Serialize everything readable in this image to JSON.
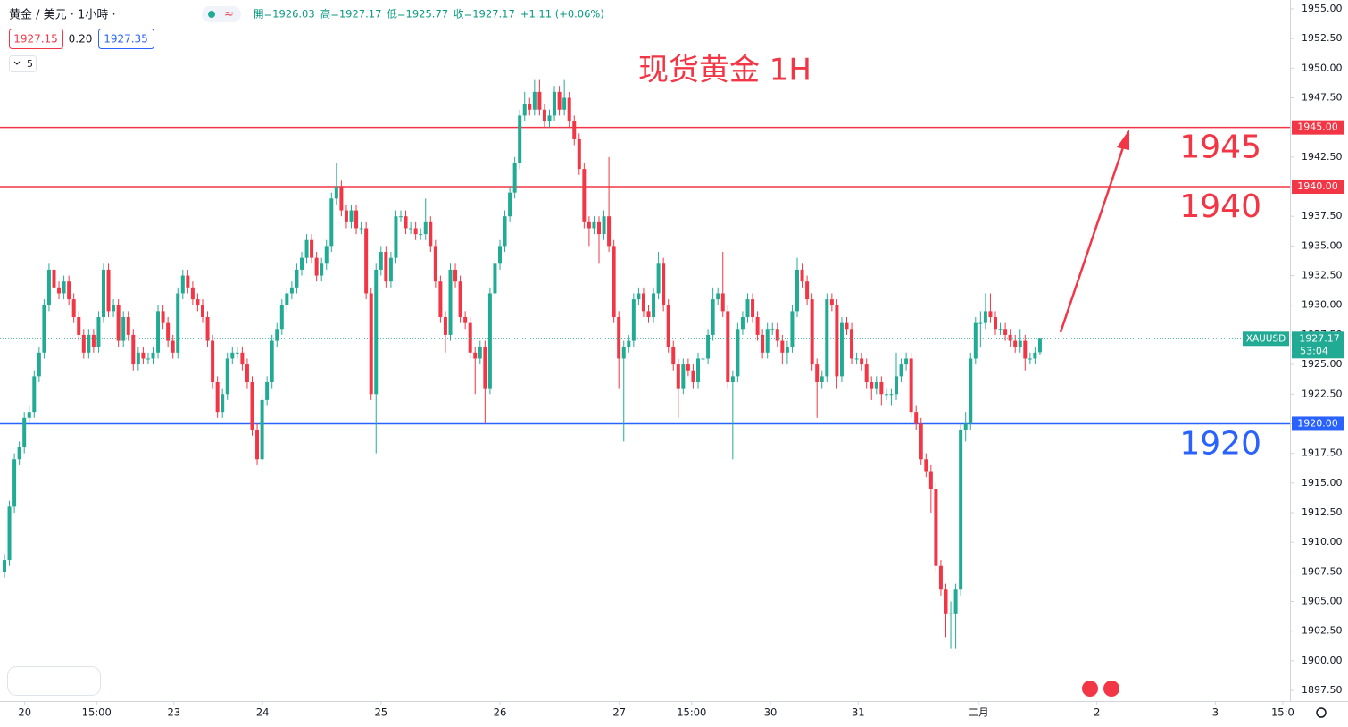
{
  "header": {
    "symbol": "黄金 / 美元 · 1小時 ·",
    "ohlc": [
      "開=1926.03",
      "高=1927.17",
      "低=1925.77",
      "收=1927.17",
      "+1.11 (+0.06%)"
    ],
    "bid": "1927.15",
    "spread": "0.20",
    "ask": "1927.35",
    "indicator": "5"
  },
  "chart_data": {
    "type": "candlestick",
    "title": "现货黄金 1H",
    "up_color": "#22ab94",
    "down_color": "#f23645",
    "grid": false,
    "ylim": [
      1896.6,
      1955.75
    ],
    "xlim": [
      -0.9,
      259.46
    ],
    "yticks": [
      {
        "value": 1897.5,
        "label": "1897.50"
      },
      {
        "value": 1900,
        "label": "1900.00"
      },
      {
        "value": 1902.5,
        "label": "1902.50"
      },
      {
        "value": 1905,
        "label": "1905.00"
      },
      {
        "value": 1907.5,
        "label": "1907.50"
      },
      {
        "value": 1910,
        "label": "1910.00"
      },
      {
        "value": 1912.5,
        "label": "1912.50"
      },
      {
        "value": 1915,
        "label": "1915.00"
      },
      {
        "value": 1917.5,
        "label": "1917.50"
      },
      {
        "value": 1920,
        "label": "1920.00"
      },
      {
        "value": 1922.5,
        "label": "1922.50"
      },
      {
        "value": 1925,
        "label": "1925.00"
      },
      {
        "value": 1927.5,
        "label": "1927.50"
      },
      {
        "value": 1930,
        "label": "1930.00"
      },
      {
        "value": 1932.5,
        "label": "1932.50"
      },
      {
        "value": 1935,
        "label": "1935.00"
      },
      {
        "value": 1937.5,
        "label": "1937.50"
      },
      {
        "value": 1940,
        "label": "1940.00"
      },
      {
        "value": 1942.5,
        "label": "1942.50"
      },
      {
        "value": 1945,
        "label": "1945.00"
      },
      {
        "value": 1947.5,
        "label": "1947.50"
      },
      {
        "value": 1950,
        "label": "1950.00"
      },
      {
        "value": 1952.5,
        "label": "1952.50"
      },
      {
        "value": 1955,
        "label": "1955.00"
      }
    ],
    "xticks": [
      {
        "value": 4.1,
        "label": "20"
      },
      {
        "value": 18.6,
        "label": "15:00"
      },
      {
        "value": 34.2,
        "label": "23"
      },
      {
        "value": 52.1,
        "label": "24"
      },
      {
        "value": 76,
        "label": "25"
      },
      {
        "value": 100,
        "label": "26"
      },
      {
        "value": 124.1,
        "label": "27"
      },
      {
        "value": 138.7,
        "label": "15:00"
      },
      {
        "value": 154.6,
        "label": "30"
      },
      {
        "value": 172.3,
        "label": "31"
      },
      {
        "value": 196.6,
        "label": "二月"
      },
      {
        "value": 220.5,
        "label": "2"
      },
      {
        "value": 244.4,
        "label": "3"
      },
      {
        "value": 258,
        "label": "15:0"
      }
    ],
    "levels": [
      {
        "value": 1945,
        "label": "1945.00",
        "color": "#f23645"
      },
      {
        "value": 1940,
        "label": "1940.00",
        "color": "#f23645"
      },
      {
        "value": 1920,
        "label": "1920.00",
        "color": "#2962ff"
      }
    ],
    "last": {
      "symbol": "XAUUSD",
      "price": 1927.17,
      "countdown": "53:04"
    },
    "candles": [
      [
        1907.5,
        1909,
        1907,
        1908.5
      ],
      [
        1908.5,
        1913.5,
        1908,
        1913
      ],
      [
        1913,
        1917.5,
        1912.5,
        1917
      ],
      [
        1917,
        1918.5,
        1916.5,
        1918
      ],
      [
        1918,
        1921,
        1917.5,
        1920.5
      ],
      [
        1920.5,
        1921.5,
        1920,
        1921
      ],
      [
        1921,
        1924.5,
        1920.5,
        1924
      ],
      [
        1924,
        1926.5,
        1923.5,
        1926
      ],
      [
        1926,
        1930.5,
        1925.5,
        1930
      ],
      [
        1930,
        1933.5,
        1929.5,
        1933
      ],
      [
        1933,
        1933.5,
        1931,
        1931.5
      ],
      [
        1931.5,
        1932,
        1930.5,
        1931
      ],
      [
        1931,
        1932.5,
        1930.5,
        1932
      ],
      [
        1932,
        1932.5,
        1930,
        1930.5
      ],
      [
        1930.5,
        1931,
        1928.5,
        1929
      ],
      [
        1929,
        1929.5,
        1927,
        1927.5
      ],
      [
        1927.5,
        1928,
        1925.5,
        1926
      ],
      [
        1926,
        1928,
        1925.5,
        1927.5
      ],
      [
        1927.5,
        1928,
        1926,
        1926.5
      ],
      [
        1926.5,
        1929.5,
        1926,
        1929
      ],
      [
        1929,
        1933.5,
        1928.5,
        1933
      ],
      [
        1933,
        1933.5,
        1929,
        1929.5
      ],
      [
        1929.5,
        1930.5,
        1929,
        1930
      ],
      [
        1930,
        1930.5,
        1926.5,
        1927
      ],
      [
        1927,
        1929.5,
        1926.5,
        1929
      ],
      [
        1929,
        1929.5,
        1927,
        1927.5
      ],
      [
        1927.5,
        1928,
        1924.5,
        1925
      ],
      [
        1925,
        1926.5,
        1924.5,
        1926
      ],
      [
        1926,
        1926.5,
        1925,
        1925.5
      ],
      [
        1925.5,
        1926,
        1925,
        1925.5
      ],
      [
        1925.5,
        1926.5,
        1925,
        1926
      ],
      [
        1926,
        1930,
        1925.5,
        1929.5
      ],
      [
        1929.5,
        1930,
        1928,
        1928.5
      ],
      [
        1928.5,
        1929,
        1926.5,
        1927
      ],
      [
        1927,
        1927.5,
        1925.5,
        1926
      ],
      [
        1926,
        1931.5,
        1925.5,
        1931
      ],
      [
        1931,
        1933,
        1930.5,
        1932.5
      ],
      [
        1932.5,
        1933,
        1931,
        1931.5
      ],
      [
        1931.5,
        1932,
        1930,
        1930.5
      ],
      [
        1930.5,
        1931,
        1929.5,
        1930
      ],
      [
        1930,
        1930.5,
        1928.5,
        1929
      ],
      [
        1929,
        1929.5,
        1926.5,
        1927
      ],
      [
        1927,
        1927.5,
        1923,
        1923.5
      ],
      [
        1923.5,
        1924,
        1920.5,
        1921
      ],
      [
        1921,
        1923,
        1920.5,
        1922.5
      ],
      [
        1922.5,
        1926,
        1922,
        1925.5
      ],
      [
        1925.5,
        1926.5,
        1925,
        1926
      ],
      [
        1926,
        1926.5,
        1925.5,
        1926
      ],
      [
        1926,
        1926.5,
        1924.5,
        1925
      ],
      [
        1925,
        1925.5,
        1923,
        1923.5
      ],
      [
        1923.5,
        1924,
        1919,
        1919.5
      ],
      [
        1919.5,
        1920,
        1916.5,
        1917
      ],
      [
        1917,
        1922.5,
        1916.5,
        1922
      ],
      [
        1922,
        1924,
        1921.5,
        1923.5
      ],
      [
        1923.5,
        1927.5,
        1923,
        1927
      ],
      [
        1927,
        1928.5,
        1926.5,
        1928
      ],
      [
        1928,
        1930.5,
        1927.5,
        1930
      ],
      [
        1930,
        1931.5,
        1929.5,
        1931
      ],
      [
        1931,
        1932,
        1930.5,
        1931.5
      ],
      [
        1931.5,
        1933.5,
        1931,
        1933
      ],
      [
        1933,
        1934.5,
        1932.5,
        1934
      ],
      [
        1934,
        1936,
        1933.5,
        1935.5
      ],
      [
        1935.5,
        1936,
        1933.5,
        1934
      ],
      [
        1934,
        1934.5,
        1932,
        1932.5
      ],
      [
        1932.5,
        1934,
        1932,
        1933.5
      ],
      [
        1933.5,
        1935.5,
        1933,
        1935
      ],
      [
        1935,
        1939.5,
        1934.5,
        1939
      ],
      [
        1939,
        1942,
        1938.5,
        1940
      ],
      [
        1940,
        1940.5,
        1937.5,
        1938
      ],
      [
        1938,
        1938.5,
        1936.5,
        1937
      ],
      [
        1937,
        1938.5,
        1936.5,
        1938
      ],
      [
        1938,
        1938.5,
        1936,
        1936.5
      ],
      [
        1936.5,
        1937,
        1936,
        1936.5
      ],
      [
        1936.5,
        1937,
        1930.5,
        1931
      ],
      [
        1931,
        1931.5,
        1922,
        1922.5
      ],
      [
        1922.5,
        1933.5,
        1917.5,
        1933
      ],
      [
        1933,
        1935,
        1932.5,
        1934.5
      ],
      [
        1934.5,
        1935,
        1931.5,
        1932
      ],
      [
        1932,
        1934.5,
        1931.5,
        1934
      ],
      [
        1934,
        1938,
        1933.5,
        1937.5
      ],
      [
        1937.5,
        1938,
        1937,
        1937.5
      ],
      [
        1937.5,
        1938,
        1936,
        1936.5
      ],
      [
        1936.5,
        1937,
        1936,
        1936.5
      ],
      [
        1936.5,
        1937,
        1935.5,
        1936
      ],
      [
        1936,
        1936.5,
        1935.5,
        1936
      ],
      [
        1936,
        1939,
        1935.5,
        1937
      ],
      [
        1937,
        1937.5,
        1934.5,
        1935
      ],
      [
        1935,
        1935.5,
        1931.5,
        1932
      ],
      [
        1932,
        1932.5,
        1928.5,
        1929
      ],
      [
        1929,
        1929.5,
        1926,
        1927.5
      ],
      [
        1927.5,
        1933.5,
        1927,
        1933
      ],
      [
        1933,
        1933.5,
        1931.5,
        1932
      ],
      [
        1932,
        1932.5,
        1928.5,
        1929
      ],
      [
        1929,
        1929.5,
        1928,
        1928.5
      ],
      [
        1928.5,
        1929,
        1925.5,
        1926
      ],
      [
        1926,
        1926.5,
        1922.5,
        1925.5
      ],
      [
        1925.5,
        1927,
        1925,
        1926.5
      ],
      [
        1926.5,
        1927,
        1920,
        1923
      ],
      [
        1923,
        1931.5,
        1922.5,
        1931
      ],
      [
        1931,
        1934,
        1930.5,
        1933.5
      ],
      [
        1933.5,
        1935.5,
        1933,
        1935
      ],
      [
        1935,
        1938,
        1934.5,
        1937.5
      ],
      [
        1937.5,
        1940,
        1937,
        1939.5
      ],
      [
        1939.5,
        1942.5,
        1939,
        1942
      ],
      [
        1942,
        1946.5,
        1941.5,
        1946
      ],
      [
        1946,
        1948,
        1945.5,
        1947
      ],
      [
        1947,
        1947.5,
        1946,
        1946.5
      ],
      [
        1946.5,
        1949,
        1946,
        1948
      ],
      [
        1948,
        1949,
        1946,
        1946.5
      ],
      [
        1946.5,
        1947,
        1945,
        1945.5
      ],
      [
        1945.5,
        1946.5,
        1945,
        1946
      ],
      [
        1946,
        1948.5,
        1945.5,
        1948
      ],
      [
        1948,
        1948.5,
        1946,
        1946.5
      ],
      [
        1946.5,
        1949,
        1946,
        1947.5
      ],
      [
        1947.5,
        1948,
        1945,
        1945.5
      ],
      [
        1945.5,
        1946,
        1943.5,
        1944
      ],
      [
        1944,
        1944.5,
        1941,
        1941.5
      ],
      [
        1941.5,
        1942,
        1936.5,
        1937
      ],
      [
        1937,
        1937.5,
        1935,
        1936.5
      ],
      [
        1936.5,
        1937.5,
        1936,
        1937
      ],
      [
        1937,
        1937.5,
        1933.5,
        1936
      ],
      [
        1936,
        1938,
        1935.5,
        1937.5
      ],
      [
        1937.5,
        1942.5,
        1934.5,
        1935
      ],
      [
        1935,
        1935.5,
        1928.5,
        1929
      ],
      [
        1929,
        1929.5,
        1923,
        1925.5
      ],
      [
        1925.5,
        1927,
        1918.5,
        1926.5
      ],
      [
        1926.5,
        1927.5,
        1926,
        1927
      ],
      [
        1927,
        1931,
        1926.5,
        1930.5
      ],
      [
        1930.5,
        1931.5,
        1930,
        1931
      ],
      [
        1931,
        1931.5,
        1929,
        1929.5
      ],
      [
        1929.5,
        1930,
        1928.5,
        1929
      ],
      [
        1929,
        1931.5,
        1928.5,
        1931
      ],
      [
        1931,
        1934.5,
        1930.5,
        1933.5
      ],
      [
        1933.5,
        1934,
        1929.5,
        1930
      ],
      [
        1930,
        1930.5,
        1926,
        1926.5
      ],
      [
        1926.5,
        1927,
        1924.5,
        1925
      ],
      [
        1925,
        1925.5,
        1920.5,
        1923
      ],
      [
        1923,
        1925.5,
        1922.5,
        1925
      ],
      [
        1925,
        1925.5,
        1924,
        1924.5
      ],
      [
        1924.5,
        1925,
        1923,
        1923.5
      ],
      [
        1923.5,
        1926,
        1923,
        1925.5
      ],
      [
        1925.5,
        1926,
        1925,
        1925.5
      ],
      [
        1925.5,
        1928,
        1925,
        1927.5
      ],
      [
        1927.5,
        1931.5,
        1927,
        1930.5
      ],
      [
        1930.5,
        1931.5,
        1930,
        1931
      ],
      [
        1931,
        1934.5,
        1929,
        1929.5
      ],
      [
        1929.5,
        1930,
        1923,
        1923.5
      ],
      [
        1923.5,
        1924.5,
        1917,
        1924
      ],
      [
        1924,
        1928.5,
        1923.5,
        1928
      ],
      [
        1928,
        1929.5,
        1927.5,
        1929
      ],
      [
        1929,
        1931,
        1928.5,
        1930.5
      ],
      [
        1930.5,
        1931,
        1928.5,
        1929
      ],
      [
        1929,
        1929.5,
        1927,
        1927.5
      ],
      [
        1927.5,
        1928,
        1925.5,
        1926
      ],
      [
        1926,
        1928.5,
        1925.5,
        1928
      ],
      [
        1928,
        1928.5,
        1927.5,
        1928
      ],
      [
        1928,
        1928.5,
        1926.5,
        1927
      ],
      [
        1927,
        1927.5,
        1925,
        1926
      ],
      [
        1926,
        1927,
        1925,
        1926.5
      ],
      [
        1926.5,
        1930,
        1926,
        1929.5
      ],
      [
        1929.5,
        1934,
        1929,
        1933
      ],
      [
        1933,
        1933.5,
        1931.5,
        1932
      ],
      [
        1932,
        1932.5,
        1930,
        1930.5
      ],
      [
        1930.5,
        1931,
        1924.5,
        1925
      ],
      [
        1925,
        1925.5,
        1920.5,
        1923.5
      ],
      [
        1923.5,
        1924.5,
        1923,
        1924
      ],
      [
        1924,
        1931,
        1923.5,
        1930.5
      ],
      [
        1930.5,
        1931,
        1929.5,
        1930
      ],
      [
        1930,
        1930.5,
        1923,
        1924
      ],
      [
        1924,
        1929,
        1923.5,
        1928.5
      ],
      [
        1928.5,
        1929,
        1927.5,
        1928
      ],
      [
        1928,
        1928.5,
        1925,
        1925.5
      ],
      [
        1925.5,
        1926,
        1925,
        1925.5
      ],
      [
        1925.5,
        1926,
        1924.5,
        1925
      ],
      [
        1925,
        1925.5,
        1923,
        1923.5
      ],
      [
        1923.5,
        1924,
        1922,
        1923
      ],
      [
        1923,
        1924,
        1922.5,
        1923.5
      ],
      [
        1923.5,
        1924,
        1921.5,
        1922.5
      ],
      [
        1922.5,
        1923,
        1922,
        1922.5
      ],
      [
        1922.5,
        1923,
        1921.5,
        1922.5
      ],
      [
        1922.5,
        1926,
        1922,
        1924
      ],
      [
        1924,
        1925.5,
        1923.5,
        1925
      ],
      [
        1925,
        1926,
        1924.5,
        1925.5
      ],
      [
        1925.5,
        1926,
        1920.5,
        1921
      ],
      [
        1921,
        1921.5,
        1919.5,
        1920
      ],
      [
        1920,
        1920.5,
        1916.5,
        1917
      ],
      [
        1917,
        1917.5,
        1915.5,
        1916
      ],
      [
        1916,
        1916.5,
        1912.5,
        1914.5
      ],
      [
        1914.5,
        1915,
        1907.5,
        1908
      ],
      [
        1908,
        1908.5,
        1905.5,
        1906
      ],
      [
        1906,
        1906.5,
        1902,
        1904
      ],
      [
        1904,
        1905,
        1901,
        1904
      ],
      [
        1904,
        1906.5,
        1901,
        1906
      ],
      [
        1906,
        1920,
        1905.5,
        1919.5
      ],
      [
        1919.5,
        1921,
        1918.5,
        1920
      ],
      [
        1920,
        1926,
        1919.5,
        1925.5
      ],
      [
        1925.5,
        1929,
        1925,
        1928.5
      ],
      [
        1928.5,
        1929.5,
        1926.5,
        1928.5
      ],
      [
        1928.5,
        1931,
        1928,
        1929.5
      ],
      [
        1929.5,
        1931,
        1928.5,
        1929
      ],
      [
        1929,
        1929.5,
        1927.5,
        1928
      ],
      [
        1928,
        1928.5,
        1927.5,
        1928
      ],
      [
        1928,
        1928.5,
        1927,
        1927.5
      ],
      [
        1927.5,
        1928,
        1926.5,
        1927
      ],
      [
        1927,
        1927.5,
        1926,
        1926.5
      ],
      [
        1926.5,
        1928,
        1926,
        1927
      ],
      [
        1927,
        1927.5,
        1924.5,
        1925.5
      ],
      [
        1925.5,
        1926,
        1925,
        1925.5
      ],
      [
        1925.5,
        1926.5,
        1925,
        1926
      ],
      [
        1926.03,
        1927.17,
        1925.77,
        1927.17
      ]
    ]
  }
}
